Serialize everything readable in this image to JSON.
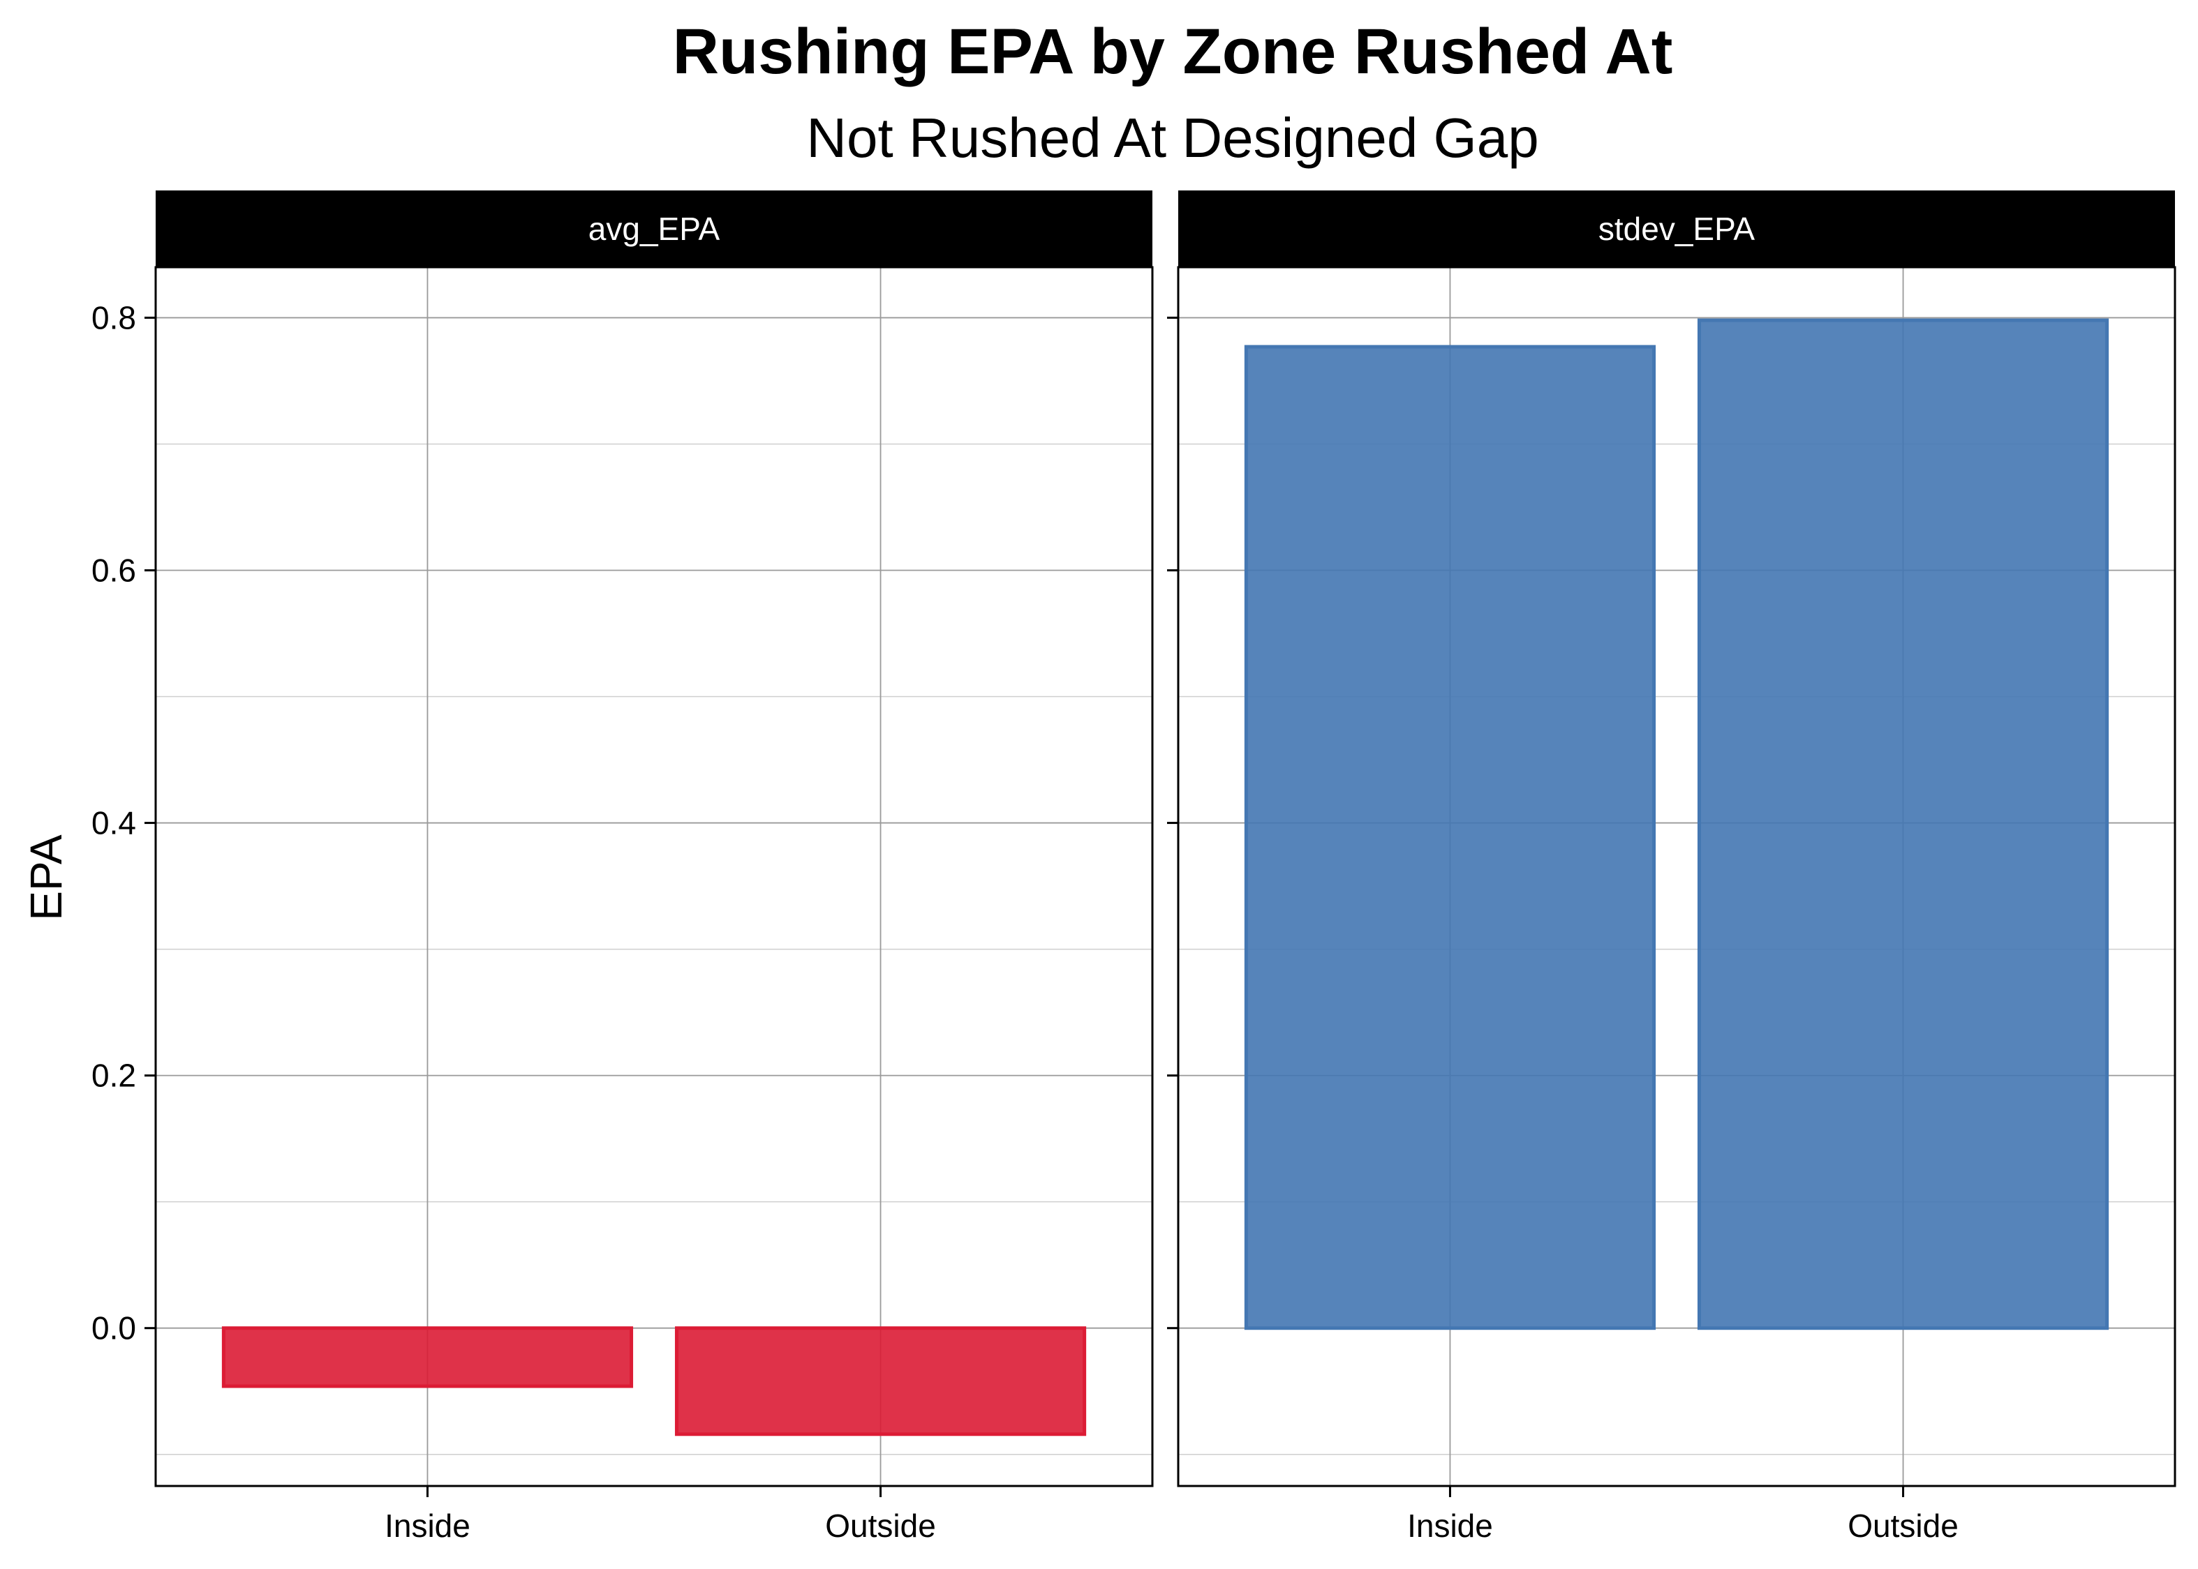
{
  "chart_data": {
    "type": "bar",
    "title": "Rushing EPA by Zone Rushed At",
    "subtitle": "Not Rushed At Designed Gap",
    "xlabel": "",
    "ylabel": "EPA",
    "categories": [
      "Inside",
      "Outside"
    ],
    "ylim": [
      -0.125,
      0.84
    ],
    "yticks": [
      0.0,
      0.2,
      0.4,
      0.6,
      0.8
    ],
    "ytick_labels": [
      "0.0",
      "0.2",
      "0.4",
      "0.6",
      "0.8"
    ],
    "grid": true,
    "facets": [
      {
        "label": "avg_EPA",
        "color": "#DC1C35",
        "values": [
          -0.046,
          -0.084
        ]
      },
      {
        "label": "stdev_EPA",
        "color": "#4477B2",
        "values": [
          0.777,
          0.798
        ]
      }
    ]
  }
}
